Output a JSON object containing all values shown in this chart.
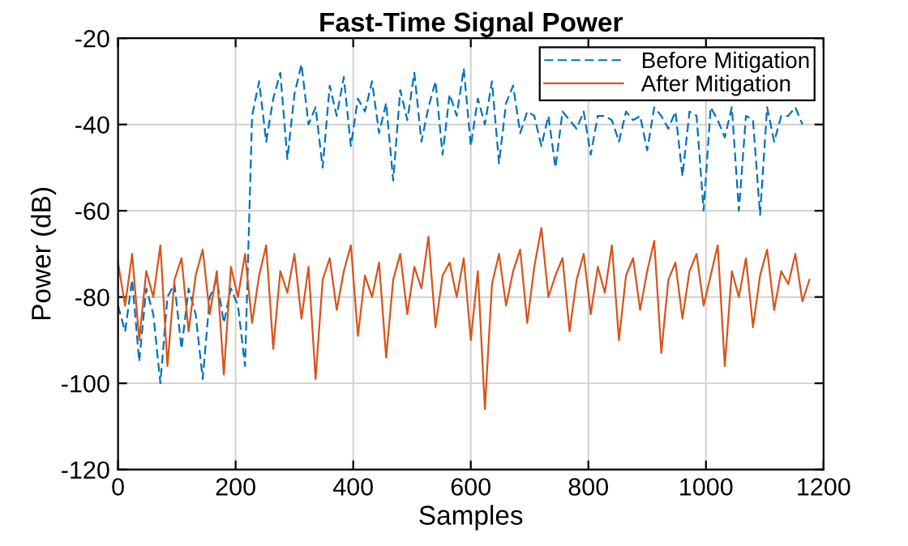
{
  "chart_data": {
    "type": "line",
    "title": "Fast-Time Signal Power",
    "xlabel": "Samples",
    "ylabel": "Power (dB)",
    "xlim": [
      0,
      1200
    ],
    "xticks": [
      0,
      200,
      400,
      600,
      800,
      1000,
      1200
    ],
    "ylim": [
      -120,
      -20
    ],
    "yticks": [
      -120,
      -100,
      -80,
      -60,
      -40,
      -20
    ],
    "grid": true,
    "legend": "top right",
    "marker": "none",
    "series": [
      {
        "name": "Before Mitigation",
        "color": "#0072bd",
        "line_style": "dashed",
        "x": [
          0,
          12,
          24,
          36,
          48,
          60,
          72,
          84,
          96,
          108,
          120,
          132,
          144,
          156,
          168,
          180,
          192,
          204,
          216,
          228,
          240,
          252,
          264,
          276,
          288,
          300,
          312,
          324,
          336,
          348,
          360,
          372,
          384,
          396,
          408,
          420,
          432,
          444,
          456,
          468,
          480,
          492,
          504,
          516,
          528,
          540,
          552,
          564,
          576,
          588,
          600,
          612,
          624,
          636,
          648,
          660,
          672,
          684,
          696,
          708,
          720,
          732,
          744,
          756,
          768,
          780,
          792,
          804,
          816,
          828,
          840,
          852,
          864,
          876,
          888,
          900,
          912,
          924,
          936,
          948,
          960,
          972,
          984,
          996,
          1008,
          1020,
          1032,
          1044,
          1056,
          1068,
          1080,
          1092,
          1104,
          1116,
          1128,
          1140,
          1152,
          1164
        ],
        "values": [
          -82,
          -88,
          -76,
          -95,
          -78,
          -84,
          -100,
          -80,
          -77,
          -92,
          -78,
          -84,
          -99,
          -80,
          -76,
          -86,
          -78,
          -82,
          -96,
          -38,
          -30,
          -44,
          -34,
          -28,
          -48,
          -33,
          -26,
          -40,
          -36,
          -50,
          -31,
          -38,
          -29,
          -45,
          -34,
          -37,
          -30,
          -42,
          -35,
          -53,
          -32,
          -39,
          -28,
          -44,
          -36,
          -30,
          -47,
          -33,
          -38,
          -27,
          -45,
          -34,
          -40,
          -30,
          -49,
          -35,
          -31,
          -42,
          -37,
          -38,
          -45,
          -38,
          -50,
          -37,
          -39,
          -41,
          -37,
          -47,
          -38,
          -38,
          -39,
          -44,
          -37,
          -39,
          -38,
          -46,
          -36,
          -38,
          -41,
          -37,
          -52,
          -37,
          -38,
          -60,
          -36,
          -39,
          -43,
          -36,
          -60,
          -38,
          -39,
          -61,
          -36,
          -44,
          -38,
          -38,
          -36,
          -40
        ]
      },
      {
        "name": "After Mitigation",
        "color": "#d95319",
        "line_style": "solid",
        "x": [
          0,
          12,
          24,
          36,
          48,
          60,
          72,
          84,
          96,
          108,
          120,
          132,
          144,
          156,
          168,
          180,
          192,
          204,
          216,
          228,
          240,
          252,
          264,
          276,
          288,
          300,
          312,
          324,
          336,
          348,
          360,
          372,
          384,
          396,
          408,
          420,
          432,
          444,
          456,
          468,
          480,
          492,
          504,
          516,
          528,
          540,
          552,
          564,
          576,
          588,
          600,
          612,
          624,
          636,
          648,
          660,
          672,
          684,
          696,
          708,
          720,
          732,
          744,
          756,
          768,
          780,
          792,
          804,
          816,
          828,
          840,
          852,
          864,
          876,
          888,
          900,
          912,
          924,
          936,
          948,
          960,
          972,
          984,
          996,
          1008,
          1020,
          1032,
          1044,
          1056,
          1068,
          1080,
          1092,
          1104,
          1116,
          1128,
          1140,
          1152,
          1164,
          1176
        ],
        "values": [
          -72,
          -82,
          -70,
          -90,
          -74,
          -80,
          -68,
          -96,
          -76,
          -71,
          -88,
          -75,
          -69,
          -84,
          -74,
          -98,
          -73,
          -80,
          -70,
          -86,
          -75,
          -68,
          -92,
          -74,
          -79,
          -70,
          -85,
          -73,
          -99,
          -76,
          -71,
          -83,
          -74,
          -68,
          -89,
          -75,
          -80,
          -72,
          -94,
          -76,
          -70,
          -84,
          -73,
          -78,
          -66,
          -87,
          -75,
          -72,
          -80,
          -71,
          -90,
          -74,
          -106,
          -77,
          -70,
          -82,
          -74,
          -69,
          -86,
          -73,
          -64,
          -80,
          -75,
          -71,
          -88,
          -76,
          -70,
          -84,
          -73,
          -79,
          -68,
          -90,
          -75,
          -71,
          -83,
          -74,
          -67,
          -93,
          -76,
          -72,
          -85,
          -74,
          -70,
          -82,
          -75,
          -68,
          -96,
          -74,
          -80,
          -71,
          -87,
          -75,
          -69,
          -83,
          -74,
          -77,
          -70,
          -81,
          -76
        ]
      }
    ]
  }
}
